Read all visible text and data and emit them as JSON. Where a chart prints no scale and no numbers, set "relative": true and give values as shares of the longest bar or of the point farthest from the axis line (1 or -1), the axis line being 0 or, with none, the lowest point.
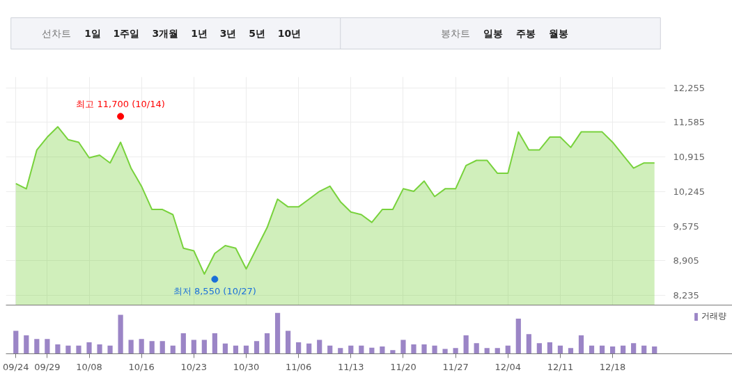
{
  "chart_data": [
    {
      "type": "other",
      "annotations": [
        "선차트",
        "1일",
        "1주일",
        "3개월",
        "1년",
        "3년",
        "5년",
        "10년",
        "봉차트",
        "일봉",
        "주봉",
        "월봉"
      ]
    },
    {
      "type": "area",
      "categories": [
        null,
        null,
        null,
        null,
        null,
        null,
        null,
        null,
        null,
        null,
        null,
        null,
        null,
        null,
        null,
        null,
        null,
        null,
        null,
        null,
        null,
        null,
        null,
        null,
        null,
        null,
        null,
        null,
        null,
        null,
        null,
        null,
        null,
        null,
        null,
        null,
        null,
        null,
        null,
        null,
        null,
        null,
        null,
        null,
        null,
        null,
        null,
        null,
        null,
        null,
        null,
        null,
        null,
        null,
        null,
        null,
        null,
        null,
        null,
        null,
        null,
        null
      ],
      "series": [
        {
          "type": "area",
          "color": "#78d23c",
          "values": [
            10400,
            10300,
            11050,
            11300,
            11500,
            11250,
            11200,
            10900,
            10950,
            10800,
            11200,
            10700,
            10350,
            9900,
            9900,
            9800,
            9150,
            9100,
            8650,
            9050,
            9200,
            9150,
            8750,
            9150,
            9550,
            10100,
            9950,
            9950,
            10100,
            10250,
            10350,
            10050,
            9850,
            9800,
            9650,
            9900,
            9900,
            10300,
            10250,
            10450,
            10150,
            10300,
            10300,
            10750,
            10850,
            10850,
            10600,
            10600,
            11400,
            11050,
            11050,
            11300,
            11300,
            11100,
            11400,
            11400,
            11400,
            11200,
            10950,
            10700,
            10800,
            10800
          ]
        },
        {
          "type": "scatter",
          "values": [
            null,
            null,
            null,
            null,
            null,
            null,
            null,
            null,
            null,
            null,
            11700,
            null,
            null,
            null,
            null,
            null,
            null,
            null,
            null,
            8550,
            null,
            null,
            null,
            null,
            null,
            null,
            null,
            null,
            null,
            null,
            null,
            null,
            null,
            null,
            null,
            null,
            null,
            null,
            null,
            null,
            null,
            null,
            null,
            null,
            null,
            null,
            null,
            null,
            null,
            null,
            null,
            null,
            null,
            null,
            null,
            null,
            null,
            null,
            null,
            null,
            null,
            null
          ],
          "colors": [
            null,
            null,
            null,
            null,
            null,
            null,
            null,
            null,
            null,
            null,
            "#ff0000",
            null,
            null,
            null,
            null,
            null,
            null,
            null,
            null,
            "#1a6fd8",
            null,
            null,
            null,
            null,
            null,
            null,
            null,
            null,
            null,
            null,
            null,
            null,
            null,
            null,
            null,
            null,
            null,
            null,
            null,
            null,
            null,
            null,
            null,
            null,
            null,
            null,
            null,
            null,
            null,
            null,
            null,
            null,
            null,
            null,
            null,
            null,
            null,
            null,
            null,
            null,
            null,
            null
          ],
          "value_labels": [
            null,
            null,
            null,
            null,
            null,
            null,
            null,
            null,
            null,
            null,
            "최고 11,700 (10/14)",
            null,
            null,
            null,
            null,
            null,
            null,
            null,
            null,
            "최저 8,550 (10/27)",
            null,
            null,
            null,
            null,
            null,
            null,
            null,
            null,
            null,
            null,
            null,
            null,
            null,
            null,
            null,
            null,
            null,
            null,
            null,
            null,
            null,
            null,
            null,
            null,
            null,
            null,
            null,
            null,
            null,
            null,
            null,
            null,
            null,
            null,
            null,
            null,
            null,
            null,
            null,
            null,
            null,
            null
          ]
        }
      ],
      "ylim": [
        8050,
        12465
      ],
      "yticks": [
        {
          "value": 8235,
          "label": "8,235"
        },
        {
          "value": 8905,
          "label": "8,905"
        },
        {
          "value": 9575,
          "label": "9,575"
        },
        {
          "value": 10245,
          "label": "10,245"
        },
        {
          "value": 10915,
          "label": "10,915"
        },
        {
          "value": 11585,
          "label": "11,585"
        },
        {
          "value": 12255,
          "label": "12,255"
        }
      ],
      "grid": true,
      "tick_labels": "y",
      "legend": false
    },
    {
      "type": "bar",
      "relative": true,
      "categories": [
        "09/24",
        null,
        null,
        "09/29",
        null,
        null,
        null,
        "10/08",
        null,
        null,
        null,
        null,
        "10/16",
        null,
        null,
        null,
        null,
        "10/23",
        null,
        null,
        null,
        null,
        "10/30",
        null,
        null,
        null,
        null,
        "11/06",
        null,
        null,
        null,
        null,
        "11/13",
        null,
        null,
        null,
        null,
        "11/20",
        null,
        null,
        null,
        null,
        "11/27",
        null,
        null,
        null,
        null,
        "12/04",
        null,
        null,
        null,
        null,
        "12/11",
        null,
        null,
        null,
        null,
        "12/18",
        null,
        null,
        null,
        null
      ],
      "series": [
        {
          "name": "거래량",
          "color": "#9b85c6",
          "values": [
            0.56,
            0.45,
            0.36,
            0.36,
            0.23,
            0.2,
            0.2,
            0.28,
            0.23,
            0.2,
            0.95,
            0.34,
            0.36,
            0.31,
            0.31,
            0.2,
            0.5,
            0.34,
            0.34,
            0.5,
            0.25,
            0.2,
            0.2,
            0.31,
            0.5,
            1,
            0.56,
            0.28,
            0.25,
            0.34,
            0.2,
            0.14,
            0.2,
            0.2,
            0.15,
            0.18,
            0.09,
            0.34,
            0.23,
            0.23,
            0.2,
            0.12,
            0.14,
            0.45,
            0.26,
            0.14,
            0.14,
            0.2,
            0.86,
            0.48,
            0.26,
            0.28,
            0.2,
            0.14,
            0.45,
            0.2,
            0.2,
            0.18,
            0.2,
            0.26,
            0.2,
            0.18
          ]
        }
      ],
      "grid": false,
      "tick_labels": "x",
      "legend": "top right"
    }
  ]
}
